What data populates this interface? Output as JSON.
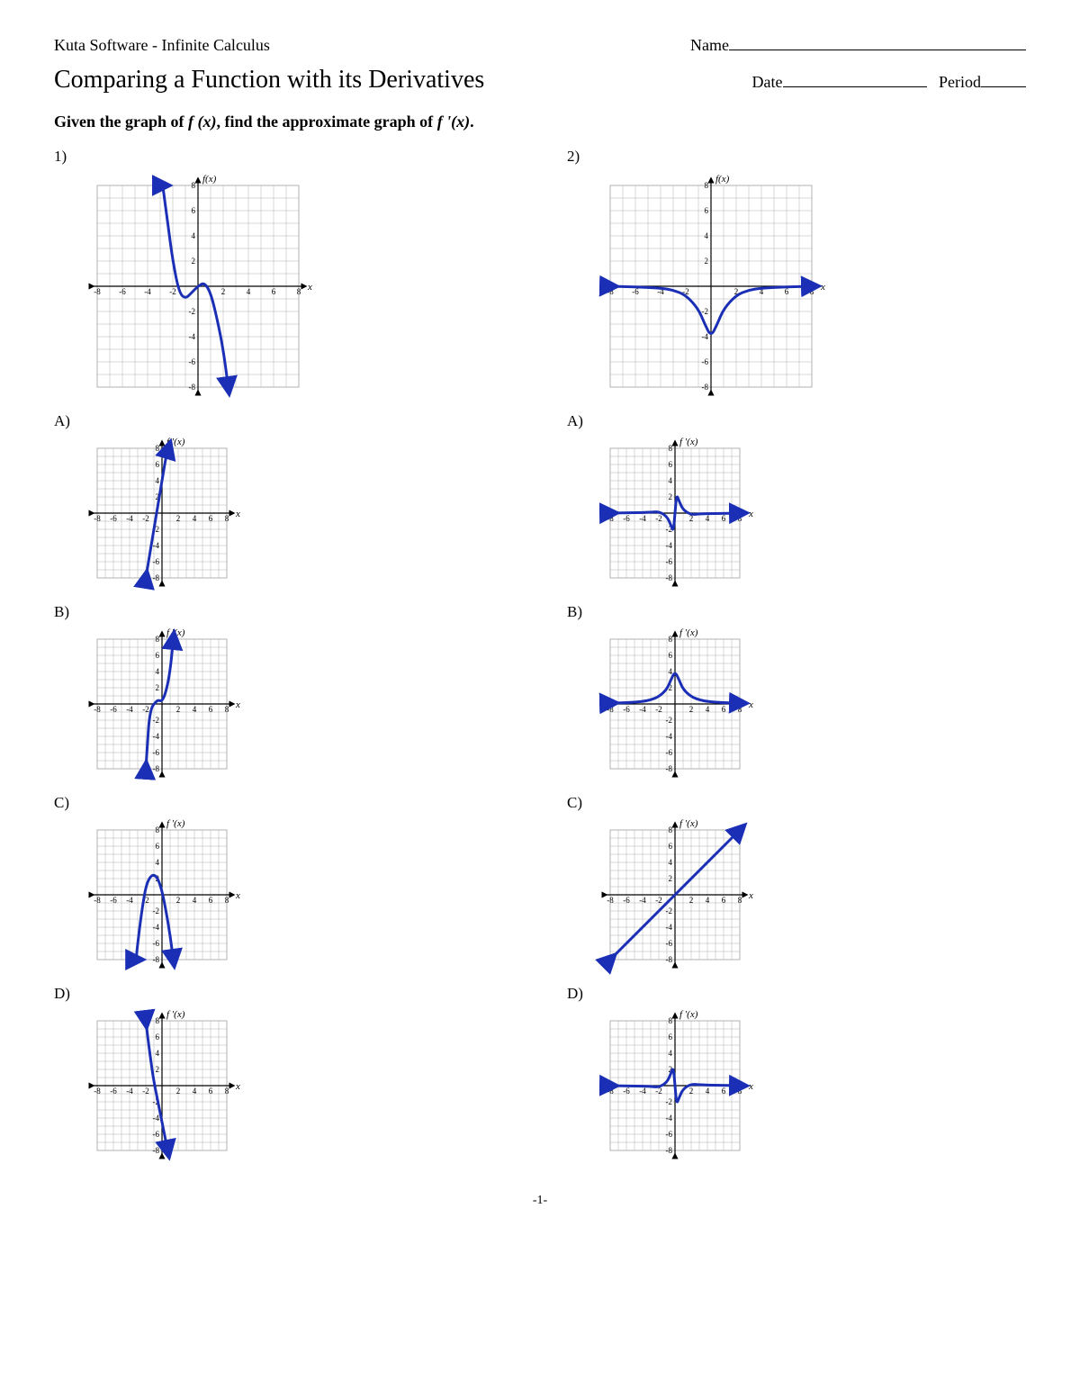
{
  "header": {
    "software": "Kuta Software - Infinite Calculus",
    "name_label": "Name"
  },
  "title": "Comparing a Function with its Derivatives",
  "date_label": "Date",
  "period_label": "Period",
  "instruction_prefix": "Given the graph of ",
  "instruction_mid": ", find the approximate graph of ",
  "instruction_suffix": ".",
  "fx": "f (x)",
  "fpx": "f '(x)",
  "footer": "-1-",
  "graph_style": {
    "curve_color": "#1a2fb5",
    "curve_width": 3,
    "grid_color": "#b0b0b0",
    "axis_color": "#000000",
    "bg": "#ffffff",
    "xlim": [
      -8,
      8
    ],
    "ylim": [
      -8,
      8
    ],
    "tick_step": 2
  },
  "col1": {
    "qnum": "1)",
    "main_label": "f(x)",
    "main_size": 260,
    "main_curve": [
      [
        -2.8,
        8
      ],
      [
        -2.4,
        5
      ],
      [
        -2,
        2
      ],
      [
        -1.5,
        -0.5
      ],
      [
        -1,
        -1
      ],
      [
        -0.5,
        -0.5
      ],
      [
        0,
        0
      ],
      [
        0.5,
        0.3
      ],
      [
        1,
        -0.5
      ],
      [
        1.5,
        -2.5
      ],
      [
        2,
        -5
      ],
      [
        2.4,
        -8
      ]
    ],
    "main_arrows": "both",
    "choices": [
      {
        "label": "A)",
        "ylabel": "f '(x)",
        "size": 180,
        "curve": [
          [
            -2,
            -8
          ],
          [
            -1.5,
            -5
          ],
          [
            -1,
            -2
          ],
          [
            -0.5,
            1
          ],
          [
            0,
            4
          ],
          [
            0.5,
            7
          ],
          [
            0.8,
            8
          ]
        ],
        "arrows": "both"
      },
      {
        "label": "B)",
        "ylabel": "f '(x)",
        "size": 180,
        "curve": [
          [
            -2,
            -8
          ],
          [
            -1.8,
            -5
          ],
          [
            -1.6,
            -2
          ],
          [
            -1.3,
            -0.5
          ],
          [
            -1,
            0
          ],
          [
            -0.5,
            0.5
          ],
          [
            0,
            0.3
          ],
          [
            0.5,
            1.5
          ],
          [
            1,
            4
          ],
          [
            1.4,
            8
          ]
        ],
        "arrows": "both"
      },
      {
        "label": "C)",
        "ylabel": "f '(x)",
        "size": 180,
        "curve": [
          [
            -3.2,
            -8
          ],
          [
            -3,
            -6
          ],
          [
            -2.5,
            -2
          ],
          [
            -2,
            1
          ],
          [
            -1.5,
            2.2
          ],
          [
            -1,
            2.5
          ],
          [
            -0.5,
            2
          ],
          [
            0,
            0.5
          ],
          [
            0.5,
            -2
          ],
          [
            1,
            -5
          ],
          [
            1.4,
            -8
          ]
        ],
        "arrows": "both"
      },
      {
        "label": "D)",
        "ylabel": "f '(x)",
        "size": 180,
        "curve": [
          [
            -2,
            8
          ],
          [
            -1.7,
            5.5
          ],
          [
            -1.3,
            2.5
          ],
          [
            -1,
            0.5
          ],
          [
            -0.5,
            -2
          ],
          [
            0,
            -4.5
          ],
          [
            0.5,
            -7
          ],
          [
            0.7,
            -8
          ]
        ],
        "arrows": "both"
      }
    ]
  },
  "col2": {
    "qnum": "2)",
    "main_label": "f(x)",
    "main_size": 260,
    "main_curve": [
      [
        -8,
        0
      ],
      [
        -6,
        -0.05
      ],
      [
        -4,
        -0.15
      ],
      [
        -3,
        -0.3
      ],
      [
        -2,
        -0.7
      ],
      [
        -1,
        -1.8
      ],
      [
        -0.5,
        -3
      ],
      [
        0,
        -4
      ],
      [
        0.5,
        -3
      ],
      [
        1,
        -1.8
      ],
      [
        2,
        -0.7
      ],
      [
        3,
        -0.3
      ],
      [
        4,
        -0.15
      ],
      [
        6,
        -0.05
      ],
      [
        8,
        0
      ]
    ],
    "main_arrows": "horiz",
    "choices": [
      {
        "label": "A)",
        "ylabel": "f '(x)",
        "size": 180,
        "curve": [
          [
            -8,
            0
          ],
          [
            -5,
            0.05
          ],
          [
            -3,
            0.1
          ],
          [
            -2,
            0.2
          ],
          [
            -1,
            -0.4
          ],
          [
            -0.5,
            -1.5
          ],
          [
            -0.2,
            -2.3
          ],
          [
            0,
            0
          ],
          [
            0.2,
            2.3
          ],
          [
            0.5,
            1.5
          ],
          [
            1,
            0.4
          ],
          [
            2,
            -0.2
          ],
          [
            3,
            -0.1
          ],
          [
            5,
            -0.05
          ],
          [
            8,
            0
          ]
        ],
        "arrows": "horiz"
      },
      {
        "label": "B)",
        "ylabel": "f '(x)",
        "size": 180,
        "curve": [
          [
            -8,
            0.1
          ],
          [
            -6,
            0.15
          ],
          [
            -4,
            0.3
          ],
          [
            -3,
            0.5
          ],
          [
            -2,
            0.9
          ],
          [
            -1,
            1.8
          ],
          [
            -0.5,
            3
          ],
          [
            0,
            4
          ],
          [
            0.5,
            3
          ],
          [
            1,
            1.8
          ],
          [
            2,
            0.9
          ],
          [
            3,
            0.5
          ],
          [
            4,
            0.3
          ],
          [
            6,
            0.15
          ],
          [
            8,
            0.1
          ]
        ],
        "arrows": "horiz"
      },
      {
        "label": "C)",
        "ylabel": "f '(x)",
        "size": 180,
        "curve": [
          [
            -8,
            -8
          ],
          [
            8,
            8
          ]
        ],
        "arrows": "both"
      },
      {
        "label": "D)",
        "ylabel": "f '(x)",
        "size": 180,
        "curve": [
          [
            -8,
            0
          ],
          [
            -5,
            -0.05
          ],
          [
            -3,
            -0.1
          ],
          [
            -2,
            -0.2
          ],
          [
            -1,
            0.4
          ],
          [
            -0.5,
            1.5
          ],
          [
            -0.2,
            2.3
          ],
          [
            0,
            0
          ],
          [
            0.2,
            -2.3
          ],
          [
            0.5,
            -1.5
          ],
          [
            1,
            -0.4
          ],
          [
            2,
            0.2
          ],
          [
            3,
            0.1
          ],
          [
            5,
            0.05
          ],
          [
            8,
            0
          ]
        ],
        "arrows": "horiz"
      }
    ]
  }
}
